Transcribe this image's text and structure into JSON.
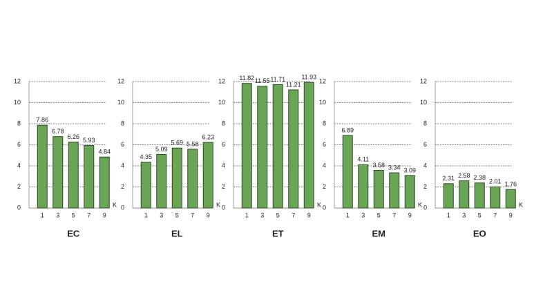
{
  "chart_data": [
    {
      "type": "bar",
      "title": "EC",
      "x_label": "K",
      "categories": [
        "1",
        "3",
        "5",
        "7",
        "9"
      ],
      "values": [
        7.86,
        6.78,
        6.26,
        5.93,
        4.84
      ],
      "color": "#6aa556",
      "ylim": [
        0,
        12
      ],
      "yticks": [
        0,
        2,
        4,
        6,
        8,
        10,
        12
      ],
      "grid": true
    },
    {
      "type": "bar",
      "title": "EL",
      "x_label": "K",
      "categories": [
        "1",
        "3",
        "5",
        "7",
        "9"
      ],
      "values": [
        4.35,
        5.09,
        5.69,
        5.58,
        6.23
      ],
      "color": "#6aa556",
      "ylim": [
        0,
        12
      ],
      "yticks": [
        0,
        2,
        4,
        6,
        8,
        10,
        12
      ],
      "grid": true
    },
    {
      "type": "bar",
      "title": "ET",
      "x_label": "K",
      "categories": [
        "1",
        "3",
        "5",
        "7",
        "9"
      ],
      "values": [
        11.82,
        11.55,
        11.71,
        11.21,
        11.93
      ],
      "color": "#6aa556",
      "ylim": [
        0,
        12
      ],
      "yticks": [
        0,
        2,
        4,
        6,
        8,
        10,
        12
      ],
      "grid": true
    },
    {
      "type": "bar",
      "title": "EM",
      "x_label": "K",
      "categories": [
        "1",
        "3",
        "5",
        "7",
        "9"
      ],
      "values": [
        6.89,
        4.11,
        3.58,
        3.34,
        3.09
      ],
      "color": "#6aa556",
      "ylim": [
        0,
        12
      ],
      "yticks": [
        0,
        2,
        4,
        6,
        8,
        10,
        12
      ],
      "grid": true
    },
    {
      "type": "bar",
      "title": "EO",
      "x_label": "K",
      "categories": [
        "1",
        "3",
        "5",
        "7",
        "9"
      ],
      "values": [
        2.31,
        2.58,
        2.38,
        2.01,
        1.76
      ],
      "color": "#6aa556",
      "ylim": [
        0,
        12
      ],
      "yticks": [
        0,
        2,
        4,
        6,
        8,
        10,
        12
      ],
      "grid": true
    }
  ]
}
